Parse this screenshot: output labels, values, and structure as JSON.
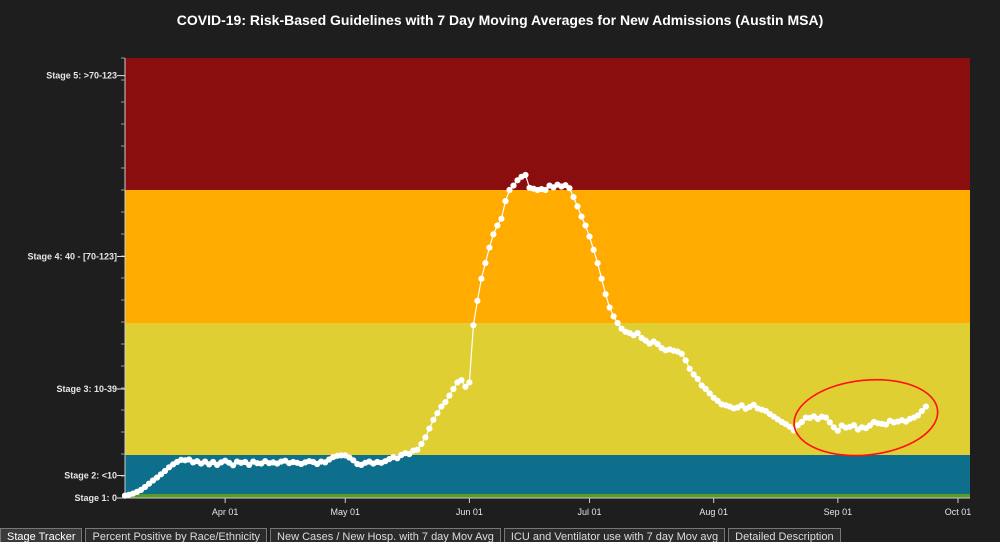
{
  "chart_data": {
    "type": "line",
    "title": "COVID-19: Risk-Based Guidelines with 7 Day Moving Averages for New Admissions (Austin MSA)",
    "x_ticks": [
      "Apr 01",
      "May 01",
      "Jun 01",
      "Jul 01",
      "Aug 01",
      "Sep 01",
      "Oct 01"
    ],
    "x_tick_days": [
      0,
      30,
      61,
      91,
      122,
      153,
      183
    ],
    "bands": [
      {
        "label": "Stage 1: 0",
        "min": 0,
        "max": 0.5,
        "color": "#5a9a2a"
      },
      {
        "label": "Stage 2: <10",
        "min": 0.5,
        "max": 10,
        "color": "#0e6f8c"
      },
      {
        "label": "Stage 3: 10-39",
        "min": 10,
        "max": 40,
        "color": "#dfcf33"
      },
      {
        "label": "Stage 4: 40 - [70-123]",
        "min": 40,
        "max": 70,
        "color": "#ffab00"
      },
      {
        "label": "Stage 5: >70-123",
        "min": 70,
        "max": 100,
        "color": "#8b0e0e"
      }
    ],
    "y_tick_labels": [
      {
        "label": "Stage 5: >70-123",
        "value": 96
      },
      {
        "label": "Stage 4: 40 - [70-123]",
        "value": 55
      },
      {
        "label": "Stage 3: 10-39",
        "value": 25
      },
      {
        "label": "Stage 2: <10",
        "value": 5
      },
      {
        "label": "Stage 1: 0",
        "value": 0
      }
    ],
    "ylim": [
      0,
      100
    ],
    "series": [
      {
        "color": "#ffffff",
        "values": [
          [
            -25,
            0.3
          ],
          [
            -24,
            0.4
          ],
          [
            -23,
            0.6
          ],
          [
            -22,
            1
          ],
          [
            -21,
            1.5
          ],
          [
            -20,
            2.2
          ],
          [
            -19,
            3
          ],
          [
            -18,
            3.8
          ],
          [
            -17,
            4.5
          ],
          [
            -16,
            5.3
          ],
          [
            -15,
            6.1
          ],
          [
            -14,
            7
          ],
          [
            -13,
            7.7
          ],
          [
            -12,
            8.3
          ],
          [
            -11,
            8.8
          ],
          [
            -10,
            8.7
          ],
          [
            -9,
            8.9
          ],
          [
            -8,
            8.2
          ],
          [
            -7,
            8.5
          ],
          [
            -6,
            7.9
          ],
          [
            -5,
            8.4
          ],
          [
            -4,
            7.7
          ],
          [
            -3,
            8.3
          ],
          [
            -2,
            7.6
          ],
          [
            -1,
            8.2
          ],
          [
            0,
            8.6
          ],
          [
            1,
            8.1
          ],
          [
            2,
            7.5
          ],
          [
            3,
            8.4
          ],
          [
            4,
            8.1
          ],
          [
            5,
            8.3
          ],
          [
            6,
            7.6
          ],
          [
            7,
            8.4
          ],
          [
            8,
            8
          ],
          [
            9,
            7.9
          ],
          [
            10,
            8.5
          ],
          [
            11,
            8
          ],
          [
            12,
            8.2
          ],
          [
            13,
            7.9
          ],
          [
            14,
            8.4
          ],
          [
            15,
            8.6
          ],
          [
            16,
            8
          ],
          [
            17,
            8.3
          ],
          [
            18,
            8.1
          ],
          [
            19,
            7.8
          ],
          [
            20,
            8.2
          ],
          [
            21,
            8.5
          ],
          [
            22,
            8.3
          ],
          [
            23,
            7.8
          ],
          [
            24,
            8.4
          ],
          [
            25,
            8.2
          ],
          [
            26,
            8.9
          ],
          [
            27,
            9.5
          ],
          [
            28,
            9.8
          ],
          [
            29,
            9.9
          ],
          [
            30,
            9.9
          ],
          [
            31,
            9.4
          ],
          [
            32,
            8.7
          ],
          [
            33,
            7.8
          ],
          [
            34,
            7.6
          ],
          [
            35,
            8.1
          ],
          [
            36,
            8.4
          ],
          [
            37,
            7.9
          ],
          [
            38,
            8.3
          ],
          [
            39,
            8.1
          ],
          [
            40,
            8.5
          ],
          [
            41,
            9
          ],
          [
            42,
            9.5
          ],
          [
            43,
            9.2
          ],
          [
            44,
            10
          ],
          [
            45,
            10.4
          ],
          [
            46,
            10.2
          ],
          [
            47,
            11
          ],
          [
            48,
            11.2
          ],
          [
            49,
            12.5
          ],
          [
            50,
            14
          ],
          [
            51,
            16
          ],
          [
            52,
            18
          ],
          [
            53,
            19.5
          ],
          [
            54,
            21
          ],
          [
            55,
            22
          ],
          [
            56,
            23.5
          ],
          [
            57,
            25
          ],
          [
            58,
            26.5
          ],
          [
            59,
            27
          ],
          [
            60,
            25.5
          ],
          [
            61,
            26.5
          ],
          [
            62,
            39.5
          ],
          [
            63,
            45
          ],
          [
            64,
            50
          ],
          [
            65,
            53.5
          ],
          [
            66,
            57
          ],
          [
            67,
            60
          ],
          [
            68,
            62
          ],
          [
            69,
            63.5
          ],
          [
            70,
            67.5
          ],
          [
            71,
            70
          ],
          [
            72,
            71
          ],
          [
            73,
            72.2
          ],
          [
            74,
            73
          ],
          [
            75,
            73.4
          ],
          [
            76,
            70.5
          ],
          [
            77,
            70.3
          ],
          [
            78,
            70
          ],
          [
            79,
            70.2
          ],
          [
            80,
            70
          ],
          [
            81,
            71
          ],
          [
            82,
            70.6
          ],
          [
            83,
            71.2
          ],
          [
            84,
            70.8
          ],
          [
            85,
            71.1
          ],
          [
            86,
            70.4
          ],
          [
            87,
            68.4
          ],
          [
            88,
            66.3
          ],
          [
            89,
            64
          ],
          [
            90,
            62
          ],
          [
            91,
            59.5
          ],
          [
            92,
            56.5
          ],
          [
            93,
            53.5
          ],
          [
            94,
            50
          ],
          [
            95,
            46.5
          ],
          [
            96,
            43.5
          ],
          [
            97,
            41.5
          ],
          [
            98,
            40
          ],
          [
            99,
            38.7
          ],
          [
            100,
            38
          ],
          [
            101,
            37.7
          ],
          [
            102,
            37.2
          ],
          [
            103,
            37.7
          ],
          [
            104,
            36.6
          ],
          [
            105,
            36
          ],
          [
            106,
            35.3
          ],
          [
            107,
            35.8
          ],
          [
            108,
            35.2
          ],
          [
            109,
            34.3
          ],
          [
            110,
            33.8
          ],
          [
            111,
            34
          ],
          [
            112,
            33.7
          ],
          [
            113,
            33.5
          ],
          [
            114,
            33
          ],
          [
            115,
            31.5
          ],
          [
            116,
            29.6
          ],
          [
            117,
            28.3
          ],
          [
            118,
            27.3
          ],
          [
            119,
            25.8
          ],
          [
            120,
            25
          ],
          [
            121,
            24
          ],
          [
            122,
            23
          ],
          [
            123,
            22.3
          ],
          [
            124,
            21.5
          ],
          [
            125,
            21.3
          ],
          [
            126,
            21
          ],
          [
            127,
            20.6
          ],
          [
            128,
            20.8
          ],
          [
            129,
            21.3
          ],
          [
            130,
            20.5
          ],
          [
            131,
            20.9
          ],
          [
            132,
            21.4
          ],
          [
            133,
            20.6
          ],
          [
            134,
            20.3
          ],
          [
            135,
            20
          ],
          [
            136,
            19.3
          ],
          [
            137,
            18.7
          ],
          [
            138,
            18.1
          ],
          [
            139,
            17.5
          ],
          [
            140,
            17
          ],
          [
            141,
            16.4
          ],
          [
            142,
            15.6
          ],
          [
            143,
            16.8
          ],
          [
            144,
            17.5
          ],
          [
            145,
            18.5
          ],
          [
            146,
            18.4
          ],
          [
            147,
            18.8
          ],
          [
            148,
            18.2
          ],
          [
            149,
            18.7
          ],
          [
            150,
            18.5
          ],
          [
            151,
            17.4
          ],
          [
            152,
            16.3
          ],
          [
            153,
            15.5
          ],
          [
            154,
            16.7
          ],
          [
            155,
            16.2
          ],
          [
            156,
            16.4
          ],
          [
            157,
            16.8
          ],
          [
            158,
            15.8
          ],
          [
            159,
            16.3
          ],
          [
            160,
            16.1
          ],
          [
            161,
            16.7
          ],
          [
            162,
            17.5
          ],
          [
            163,
            17.2
          ],
          [
            164,
            17.1
          ],
          [
            165,
            16.9
          ],
          [
            166,
            17.8
          ],
          [
            167,
            17.4
          ],
          [
            168,
            17.6
          ],
          [
            169,
            17.9
          ],
          [
            170,
            17.6
          ],
          [
            171,
            18.2
          ],
          [
            172,
            18.5
          ],
          [
            173,
            19
          ],
          [
            174,
            20
          ],
          [
            175,
            21
          ]
        ]
      }
    ],
    "annotation": {
      "type": "ellipse",
      "color": "#ff1010",
      "x_range": [
        142,
        178
      ],
      "y_range": [
        10,
        27
      ]
    },
    "grid": false,
    "legend": "none"
  },
  "tabs": [
    {
      "label": "Stage Tracker",
      "active": true
    },
    {
      "label": "Percent Positive by Race/Ethnicity",
      "active": false
    },
    {
      "label": "New Cases / New Hosp. with 7 day Mov Avg",
      "active": false
    },
    {
      "label": "ICU and Ventilator use with 7 day Mov avg",
      "active": false
    },
    {
      "label": "Detailed Description",
      "active": false
    }
  ]
}
